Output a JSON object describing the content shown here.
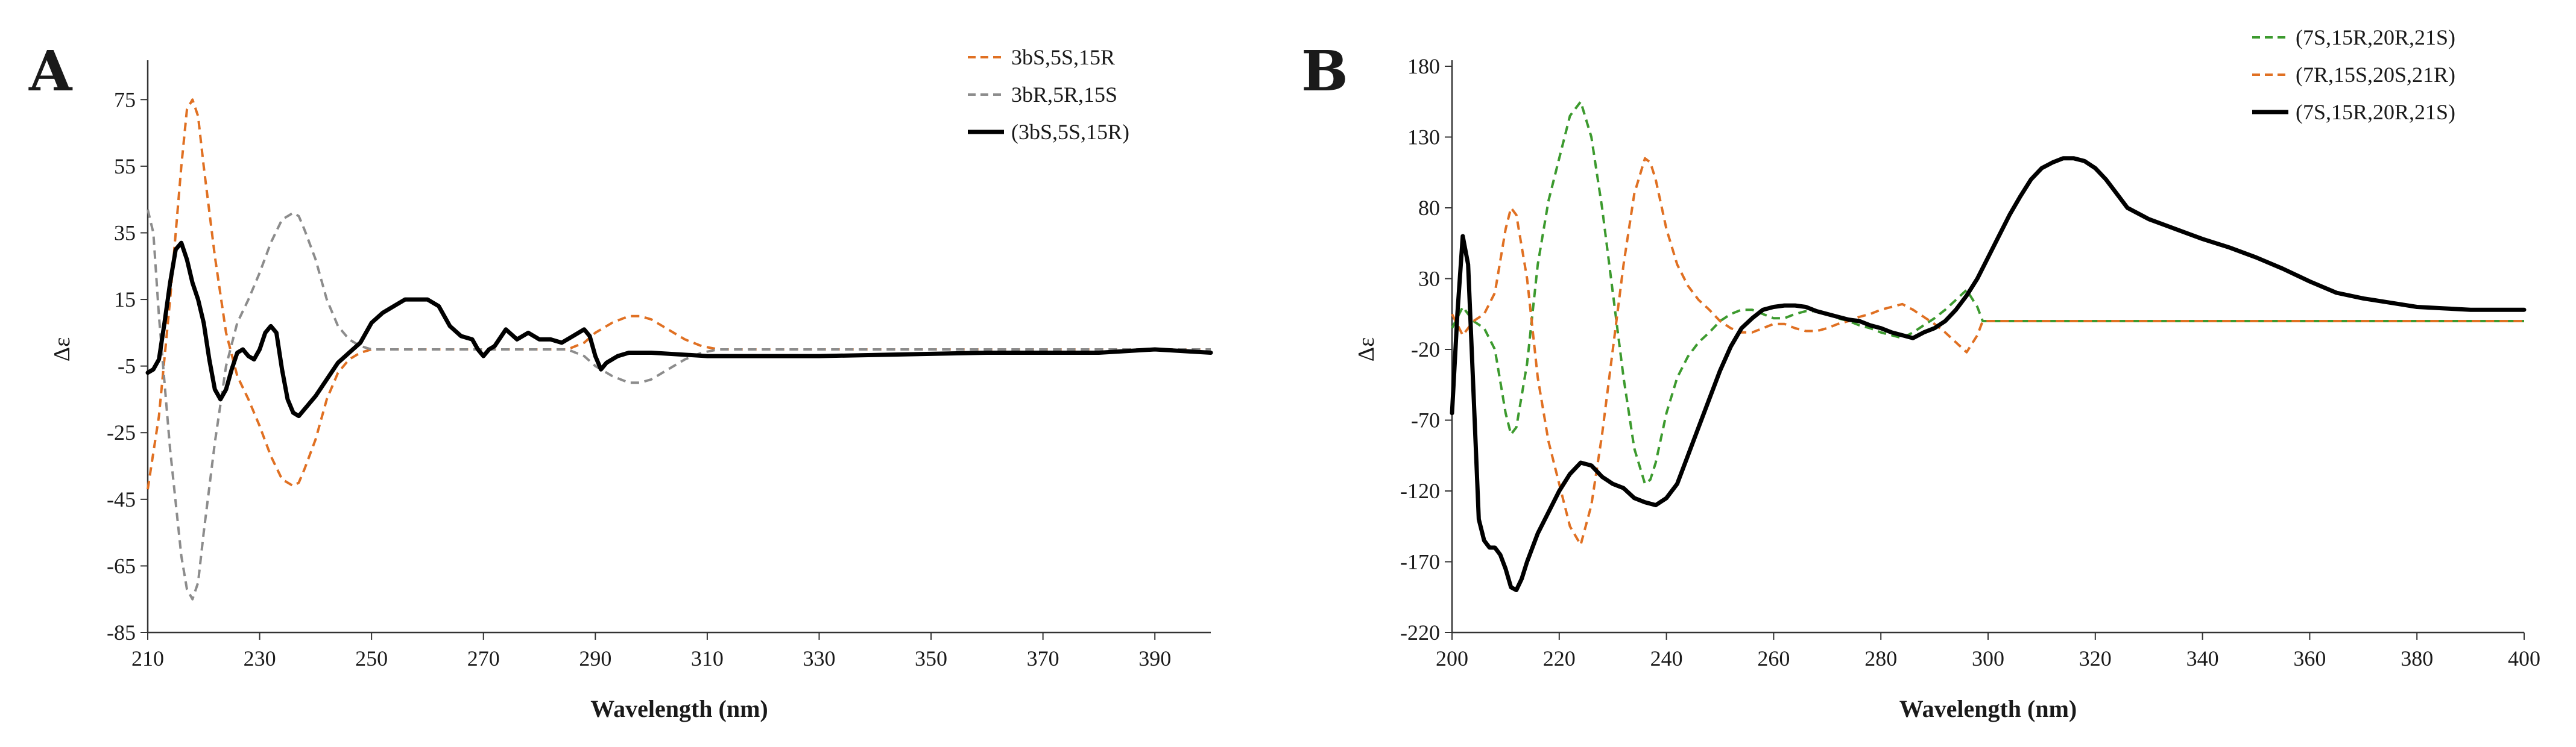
{
  "chart_data": [
    {
      "type": "line",
      "panel_label": "A",
      "xlabel": "Wavelength (nm)",
      "ylabel": "Δε",
      "xlim": [
        210,
        400
      ],
      "ylim": [
        -85,
        85
      ],
      "x_ticks": [
        210,
        230,
        250,
        270,
        290,
        310,
        330,
        350,
        370,
        390
      ],
      "y_ticks": [
        -85,
        -65,
        -45,
        -25,
        -5,
        15,
        35,
        55,
        75
      ],
      "grid": false,
      "legend_position": "top-right",
      "series": [
        {
          "name": "3bS,5S,15R",
          "color": "#E07022",
          "style": "dashed",
          "x": [
            210,
            212,
            214,
            216,
            217,
            218,
            219,
            220,
            222,
            224,
            226,
            228,
            230,
            232,
            234,
            236,
            237,
            238,
            240,
            242,
            244,
            246,
            248,
            250,
            255,
            260,
            265,
            270,
            275,
            280,
            285,
            288,
            290,
            293,
            296,
            298,
            300,
            303,
            306,
            309,
            312,
            320,
            340,
            360,
            380,
            400
          ],
          "y": [
            -42,
            -20,
            15,
            55,
            72,
            75,
            70,
            55,
            28,
            5,
            -8,
            -15,
            -23,
            -32,
            -39,
            -41,
            -40,
            -36,
            -27,
            -15,
            -7,
            -3,
            -1,
            0,
            0,
            0,
            0,
            0,
            0,
            0,
            0,
            2,
            5,
            8,
            10,
            10,
            9,
            6,
            3,
            1,
            0,
            0,
            0,
            0,
            0,
            0
          ]
        },
        {
          "name": "3bR,5R,15S",
          "color": "#8C8C8C",
          "style": "dashed",
          "x": [
            210,
            211,
            212,
            214,
            216,
            217,
            218,
            219,
            220,
            222,
            224,
            226,
            228,
            230,
            232,
            234,
            236,
            237,
            238,
            240,
            242,
            244,
            246,
            248,
            250,
            255,
            260,
            270,
            280,
            285,
            288,
            290,
            293,
            296,
            298,
            300,
            303,
            306,
            309,
            312,
            320,
            340,
            360,
            380,
            400
          ],
          "y": [
            42,
            35,
            10,
            -30,
            -62,
            -72,
            -75,
            -70,
            -55,
            -28,
            -5,
            8,
            15,
            23,
            32,
            39,
            41,
            40,
            36,
            27,
            15,
            7,
            3,
            1,
            0,
            0,
            0,
            0,
            0,
            0,
            -2,
            -5,
            -8,
            -10,
            -10,
            -9,
            -6,
            -3,
            -1,
            0,
            0,
            0,
            0,
            0,
            0
          ]
        },
        {
          "name": "(3bS,5S,15R)",
          "color": "#000000",
          "style": "solid",
          "x": [
            210,
            211,
            212,
            213,
            214,
            215,
            216,
            217,
            218,
            219,
            220,
            221,
            222,
            223,
            224,
            225,
            226,
            227,
            228,
            229,
            230,
            231,
            232,
            233,
            234,
            235,
            236,
            237,
            238,
            240,
            242,
            244,
            246,
            248,
            250,
            252,
            254,
            256,
            258,
            260,
            262,
            264,
            266,
            268,
            269,
            270,
            271,
            272,
            274,
            276,
            278,
            280,
            282,
            284,
            286,
            288,
            289,
            290,
            291,
            292,
            294,
            296,
            300,
            310,
            330,
            360,
            380,
            390,
            400
          ],
          "y": [
            -7,
            -6,
            -3,
            8,
            20,
            30,
            32,
            27,
            20,
            15,
            8,
            -3,
            -12,
            -15,
            -12,
            -6,
            -1,
            0,
            -2,
            -3,
            0,
            5,
            7,
            5,
            -6,
            -15,
            -19,
            -20,
            -18,
            -14,
            -9,
            -4,
            -1,
            2,
            8,
            11,
            13,
            15,
            15,
            15,
            13,
            7,
            4,
            3,
            0,
            -2,
            0,
            1,
            6,
            3,
            5,
            3,
            3,
            2,
            4,
            6,
            4,
            -2,
            -6,
            -4,
            -2,
            -1,
            -1,
            -2,
            -2,
            -1,
            -1,
            0,
            -1
          ]
        }
      ]
    },
    {
      "type": "line",
      "panel_label": "B",
      "xlabel": "Wavelength (nm)",
      "ylabel": "Δε",
      "xlim": [
        200,
        400
      ],
      "ylim": [
        -220,
        180
      ],
      "x_ticks": [
        200,
        220,
        240,
        260,
        280,
        300,
        320,
        340,
        360,
        380,
        400
      ],
      "y_ticks": [
        -220,
        -170,
        -120,
        -70,
        -20,
        30,
        80,
        130,
        180
      ],
      "grid": false,
      "legend_position": "top-right",
      "series": [
        {
          "name": "(7S,15R,20R,21S)",
          "color": "#3C9A2E",
          "style": "dashed",
          "x": [
            200,
            202,
            204,
            206,
            208,
            210,
            211,
            212,
            214,
            216,
            218,
            220,
            222,
            224,
            226,
            228,
            230,
            232,
            234,
            236,
            237,
            238,
            240,
            242,
            244,
            246,
            248,
            250,
            252,
            254,
            256,
            258,
            260,
            262,
            264,
            266,
            268,
            270,
            272,
            274,
            276,
            278,
            280,
            282,
            284,
            286,
            288,
            290,
            292,
            294,
            296,
            298,
            299,
            300,
            310,
            330,
            350,
            370,
            400
          ],
          "y": [
            -5,
            10,
            0,
            -5,
            -20,
            -65,
            -80,
            -75,
            -30,
            40,
            85,
            115,
            145,
            155,
            130,
            80,
            20,
            -40,
            -90,
            -115,
            -112,
            -100,
            -65,
            -40,
            -25,
            -15,
            -8,
            0,
            5,
            8,
            8,
            5,
            2,
            2,
            5,
            7,
            7,
            5,
            2,
            0,
            -3,
            -5,
            -8,
            -10,
            -12,
            -8,
            -3,
            2,
            8,
            15,
            22,
            10,
            0,
            0,
            0,
            0,
            0,
            0,
            0
          ]
        },
        {
          "name": "(7R,15S,20S,21R)",
          "color": "#E07022",
          "style": "dashed",
          "x": [
            200,
            202,
            204,
            206,
            208,
            210,
            211,
            212,
            214,
            216,
            218,
            220,
            222,
            224,
            226,
            228,
            230,
            232,
            234,
            236,
            237,
            238,
            240,
            242,
            244,
            246,
            248,
            250,
            252,
            254,
            256,
            258,
            260,
            262,
            264,
            266,
            268,
            270,
            272,
            274,
            276,
            278,
            280,
            282,
            284,
            286,
            288,
            290,
            292,
            294,
            296,
            298,
            299,
            300,
            310,
            330,
            350,
            370,
            400
          ],
          "y": [
            5,
            -10,
            0,
            5,
            20,
            65,
            80,
            75,
            30,
            -40,
            -85,
            -115,
            -145,
            -158,
            -130,
            -80,
            -20,
            40,
            90,
            115,
            112,
            100,
            65,
            40,
            25,
            15,
            8,
            0,
            -5,
            -8,
            -8,
            -5,
            -2,
            -2,
            -5,
            -7,
            -7,
            -5,
            -2,
            0,
            3,
            5,
            8,
            10,
            12,
            8,
            3,
            -2,
            -8,
            -15,
            -22,
            -10,
            0,
            0,
            0,
            0,
            0,
            0,
            0
          ]
        },
        {
          "name": "(7S,15R,20R,21S)",
          "color": "#000000",
          "style": "solid",
          "x": [
            200,
            201,
            202,
            203,
            204,
            205,
            206,
            207,
            208,
            209,
            210,
            211,
            212,
            213,
            214,
            216,
            218,
            220,
            222,
            224,
            226,
            228,
            230,
            232,
            234,
            236,
            238,
            240,
            242,
            244,
            246,
            248,
            250,
            252,
            254,
            256,
            258,
            260,
            262,
            264,
            266,
            268,
            270,
            272,
            274,
            276,
            278,
            280,
            282,
            284,
            286,
            288,
            290,
            292,
            294,
            296,
            298,
            300,
            302,
            304,
            306,
            308,
            310,
            312,
            314,
            316,
            318,
            320,
            322,
            324,
            326,
            330,
            335,
            340,
            345,
            350,
            355,
            360,
            365,
            370,
            375,
            380,
            385,
            390,
            395,
            400
          ],
          "y": [
            -65,
            5,
            60,
            40,
            -50,
            -140,
            -155,
            -160,
            -160,
            -165,
            -175,
            -188,
            -190,
            -182,
            -170,
            -150,
            -135,
            -120,
            -108,
            -100,
            -102,
            -110,
            -115,
            -118,
            -125,
            -128,
            -130,
            -125,
            -115,
            -95,
            -75,
            -55,
            -35,
            -18,
            -5,
            2,
            8,
            10,
            11,
            11,
            10,
            7,
            5,
            3,
            1,
            0,
            -3,
            -5,
            -8,
            -10,
            -12,
            -8,
            -5,
            0,
            8,
            18,
            30,
            45,
            60,
            75,
            88,
            100,
            108,
            112,
            115,
            115,
            113,
            108,
            100,
            90,
            80,
            72,
            65,
            58,
            52,
            45,
            37,
            28,
            20,
            16,
            13,
            10,
            9,
            8,
            8,
            8
          ]
        }
      ]
    }
  ]
}
